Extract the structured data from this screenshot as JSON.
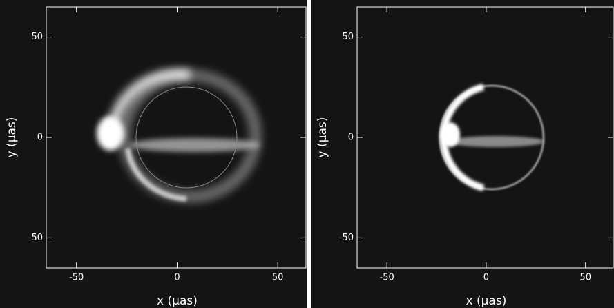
{
  "chart_data": [
    {
      "type": "image",
      "xlabel": "x (μas)",
      "ylabel": "y (μas)",
      "xlim": [
        -65,
        64
      ],
      "ylim": [
        -65,
        65
      ],
      "xticks": [
        -50,
        0,
        50
      ],
      "yticks": [
        -50,
        0,
        50
      ]
    },
    {
      "type": "image",
      "xlabel": "x (μas)",
      "ylabel": "y (μas)",
      "xlim": [
        -65,
        64
      ],
      "ylim": [
        -65,
        65
      ],
      "xticks": [
        -50,
        0,
        50
      ],
      "yticks": [
        -50,
        0,
        50
      ]
    }
  ]
}
